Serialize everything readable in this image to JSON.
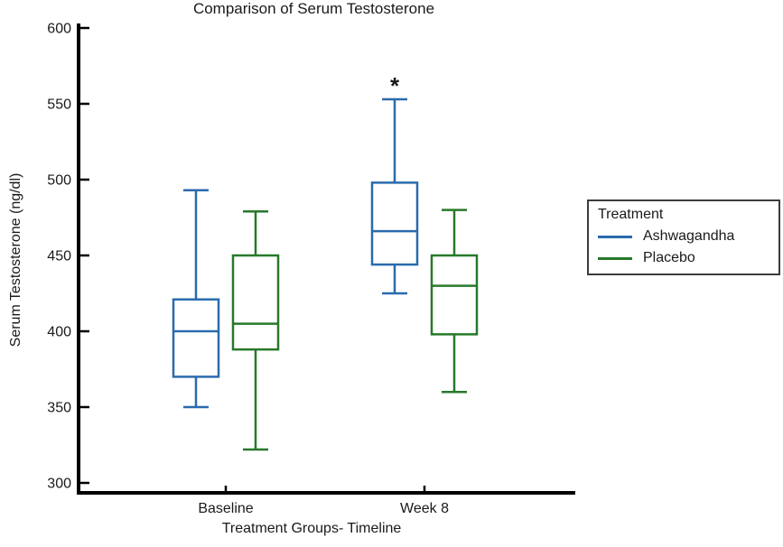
{
  "chart_data": {
    "type": "boxplot",
    "title": "Comparison of Serum Testosterone",
    "xlabel": "Treatment Groups- Timeline",
    "ylabel": "Serum Testosterone (ng/dl)",
    "ylim": [
      300,
      600
    ],
    "yticks": [
      300,
      350,
      400,
      450,
      500,
      550,
      600
    ],
    "categories": [
      "Baseline",
      "Week 8"
    ],
    "grid": false,
    "legend_position": "right",
    "series": [
      {
        "name": "Ashwagandha",
        "color": "#2a6bad",
        "boxes": [
          {
            "category": "Baseline",
            "whisker_low": 350,
            "q1": 370,
            "median": 400,
            "q3": 421,
            "whisker_high": 493,
            "significance": ""
          },
          {
            "category": "Week 8",
            "whisker_low": 425,
            "q1": 444,
            "median": 466,
            "q3": 498,
            "whisker_high": 553,
            "significance": "*"
          }
        ]
      },
      {
        "name": "Placebo",
        "color": "#27792a",
        "boxes": [
          {
            "category": "Baseline",
            "whisker_low": 322,
            "q1": 388,
            "median": 405,
            "q3": 450,
            "whisker_high": 479,
            "significance": ""
          },
          {
            "category": "Week 8",
            "whisker_low": 360,
            "q1": 398,
            "median": 430,
            "q3": 450,
            "whisker_high": 480,
            "significance": ""
          }
        ]
      }
    ]
  },
  "legend": {
    "title": "Treatment"
  },
  "colors": {
    "axis": "#000000",
    "text": "#1a1a1a",
    "background": "#ffffff"
  }
}
